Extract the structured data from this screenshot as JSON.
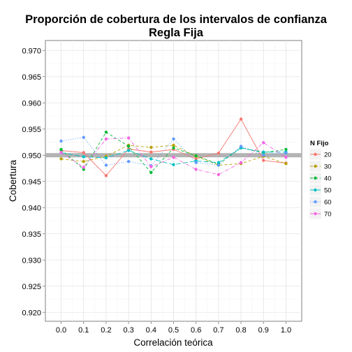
{
  "chart_data": {
    "type": "line",
    "title": "Proporción de cobertura de los intervalos de confianza",
    "subtitle": "Regla Fija",
    "xlabel": "Correlación teórica",
    "ylabel": "Cobertura",
    "x": [
      0.0,
      0.1,
      0.2,
      0.3,
      0.4,
      0.5,
      0.6,
      0.7,
      0.8,
      0.9,
      1.0
    ],
    "x_tick_labels": [
      "0.0",
      "0.1",
      "0.2",
      "0.3",
      "0.4",
      "0.5",
      "0.6",
      "0.7",
      "0.8",
      "0.9",
      "1.0"
    ],
    "y_ticks": [
      0.92,
      0.925,
      0.93,
      0.935,
      0.94,
      0.945,
      0.95,
      0.955,
      0.96,
      0.965,
      0.97
    ],
    "y_tick_labels": [
      "0.920",
      "0.925",
      "0.930",
      "0.935",
      "0.940",
      "0.945",
      "0.950",
      "0.955",
      "0.960",
      "0.965",
      "0.970"
    ],
    "xlim": [
      -0.07,
      1.07
    ],
    "ylim": [
      0.9183,
      0.9719
    ],
    "reference_line": 0.95,
    "grid": true,
    "legend_title": "N Fijo",
    "legend_position": "right",
    "series": [
      {
        "name": "20",
        "color": "#F8766D",
        "dash": "solid",
        "values": [
          0.9509,
          0.9505,
          0.9461,
          0.9512,
          0.9506,
          0.9511,
          0.9493,
          0.9504,
          0.9569,
          0.949,
          0.9485
        ]
      },
      {
        "name": "30",
        "color": "#B79F00",
        "dash": "dashed",
        "values": [
          0.9493,
          0.9488,
          0.9498,
          0.9519,
          0.9515,
          0.9519,
          0.9498,
          0.9481,
          0.9484,
          0.9498,
          0.9484
        ]
      },
      {
        "name": "40",
        "color": "#00BA38",
        "dash": "dashed",
        "values": [
          0.9511,
          0.9473,
          0.9544,
          0.9517,
          0.9467,
          0.9514,
          0.9499,
          0.9483,
          0.9514,
          0.9505,
          0.9511
        ]
      },
      {
        "name": "50",
        "color": "#00BFC4",
        "dash": "longdash",
        "values": [
          0.9505,
          0.9497,
          0.9495,
          0.9509,
          0.9493,
          0.9482,
          0.9489,
          0.9486,
          0.9514,
          0.9506,
          0.9506
        ]
      },
      {
        "name": "60",
        "color": "#619CFF",
        "dash": "dotted",
        "values": [
          0.9527,
          0.9534,
          0.9481,
          0.9488,
          0.948,
          0.9531,
          0.9486,
          0.9481,
          0.9517,
          0.95,
          0.9504
        ]
      },
      {
        "name": "70",
        "color": "#F564E3",
        "dash": "dashdot",
        "values": [
          0.9505,
          0.9477,
          0.9531,
          0.9533,
          0.9478,
          0.9496,
          0.9473,
          0.9463,
          0.9486,
          0.9524,
          0.9496
        ]
      }
    ]
  }
}
